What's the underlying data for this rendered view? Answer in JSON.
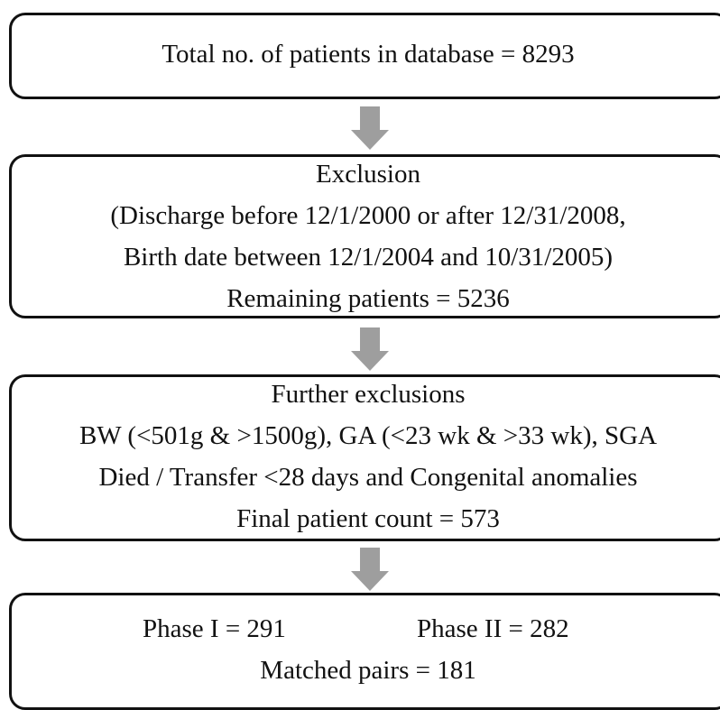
{
  "flowchart": {
    "box1": {
      "text": "Total no. of patients in database = 8293"
    },
    "box2": {
      "title": "Exclusion",
      "line2": "(Discharge before 12/1/2000 or after 12/31/2008,",
      "line3": "Birth date between 12/1/2004 and 10/31/2005)",
      "line4": "Remaining patients =  5236"
    },
    "box3": {
      "title": "Further exclusions",
      "line2": "BW (<501g & >1500g), GA (<23 wk & >33 wk),  SGA",
      "line3": "Died / Transfer <28 days and Congenital anomalies",
      "line4": "Final patient count = 573"
    },
    "box4": {
      "phase1": "Phase  I =  291",
      "phase2": "Phase  II =  282",
      "matched": "Matched pairs = 181"
    },
    "arrow_color": "#9e9e9e",
    "border_color": "#111111"
  }
}
